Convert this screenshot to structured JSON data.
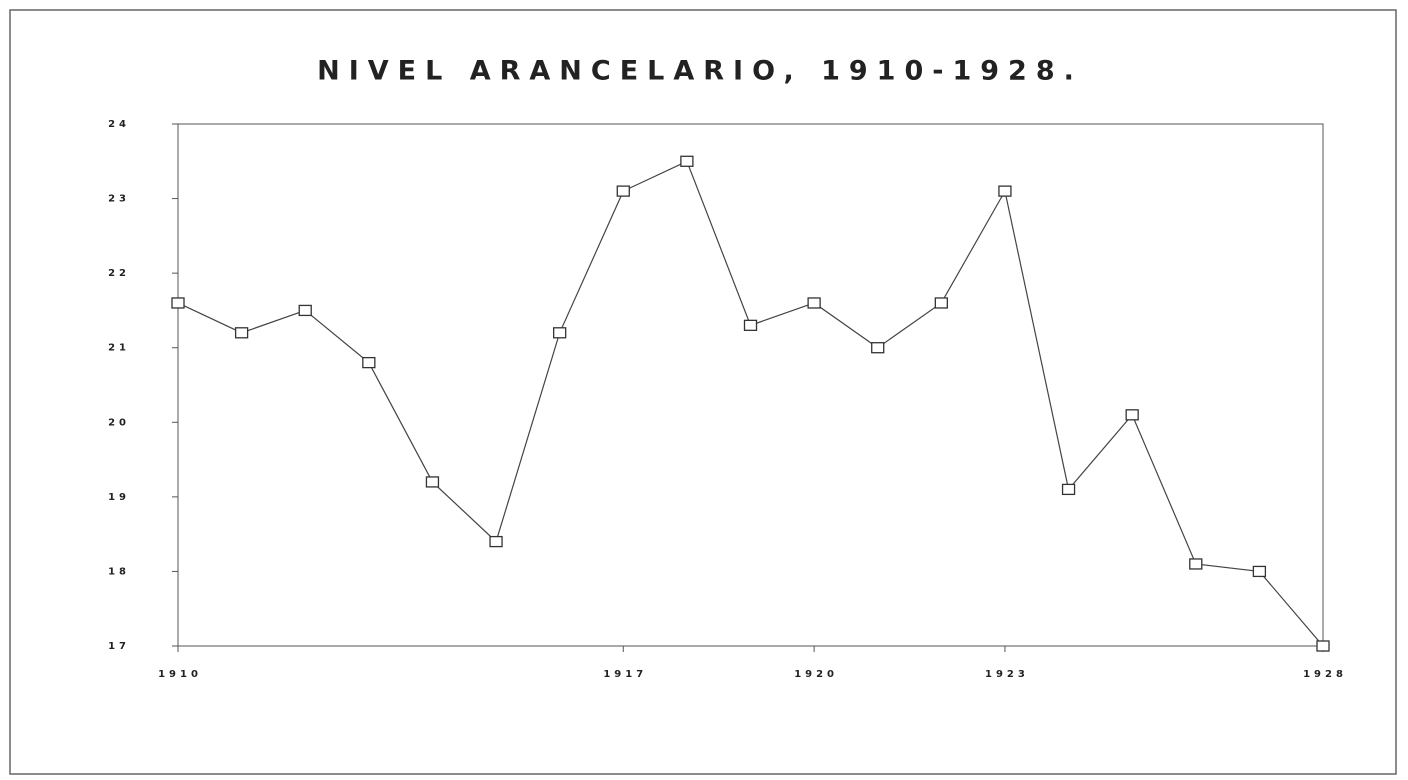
{
  "chart_data": {
    "type": "line",
    "title": "NIVEL ARANCELARIO, 1910-1928.",
    "x": [
      1910,
      1911,
      1912,
      1913,
      1914,
      1915,
      1916,
      1917,
      1918,
      1919,
      1920,
      1921,
      1922,
      1923,
      1924,
      1925,
      1926,
      1927,
      1928
    ],
    "values": [
      21.6,
      21.2,
      21.5,
      20.8,
      19.2,
      18.4,
      21.2,
      23.1,
      23.5,
      21.3,
      21.6,
      21.0,
      21.6,
      23.1,
      19.1,
      20.1,
      18.1,
      18.0,
      17.0
    ],
    "color": "#444444",
    "xlim": [
      1910,
      1928
    ],
    "xticks": [
      1910,
      1917,
      1920,
      1923,
      1928
    ],
    "ylim": [
      17,
      24
    ],
    "yticks": [
      17,
      18,
      19,
      20,
      21,
      22,
      23,
      24
    ]
  }
}
